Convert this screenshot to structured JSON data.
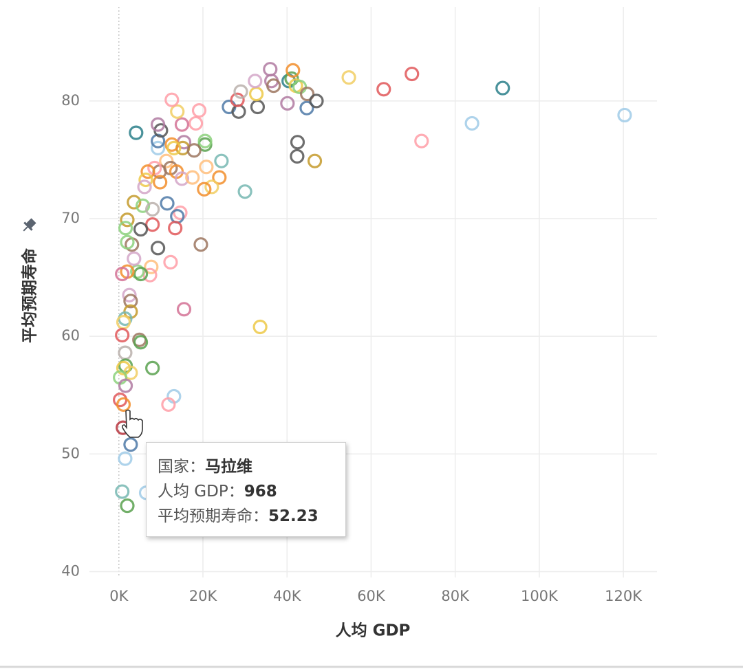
{
  "chart_data": {
    "type": "scatter",
    "x_label": "人均 GDP",
    "y_label": "平均预期寿命",
    "xlim": [
      -7000,
      128000
    ],
    "ylim": [
      39.5,
      88
    ],
    "xticks": [
      {
        "value": 0,
        "label": "0K"
      },
      {
        "value": 20000,
        "label": "20K"
      },
      {
        "value": 40000,
        "label": "40K"
      },
      {
        "value": 60000,
        "label": "60K"
      },
      {
        "value": 80000,
        "label": "80K"
      },
      {
        "value": 100000,
        "label": "100K"
      },
      {
        "value": 120000,
        "label": "120K"
      }
    ],
    "yticks": [
      40,
      50,
      60,
      70,
      80
    ],
    "grid": true,
    "x": [
      4100,
      26200,
      28500,
      28200,
      29000,
      33000,
      32700,
      32400,
      36000,
      36300,
      36800,
      40100,
      40400,
      41100,
      41400,
      42100,
      43000,
      44700,
      44800,
      47000,
      42500,
      42400,
      46600,
      54700,
      63000,
      69700,
      72000,
      84000,
      91300,
      120300,
      33600,
      30000,
      24400,
      23900,
      22100,
      20300,
      20800,
      20500,
      20500,
      19100,
      18300,
      15000,
      13900,
      12600,
      15500,
      15200,
      17900,
      12600,
      13100,
      11300,
      12300,
      13700,
      15000,
      17500,
      9300,
      9300,
      10000,
      9300,
      9700,
      8500,
      6900,
      6400,
      6100,
      9800,
      3600,
      5700,
      8000,
      11500,
      14600,
      13900,
      13400,
      8000,
      5200,
      2000,
      1600,
      3100,
      2000,
      19500,
      9300,
      12300,
      7700,
      7400,
      4400,
      5200,
      2000,
      800,
      3600,
      2500,
      2800,
      2800,
      1500,
      1100,
      800,
      4900,
      5200,
      15500,
      1500,
      1600,
      1100,
      2800,
      300,
      1600,
      8000,
      13100,
      11800,
      300,
      1100,
      968,
      2800,
      1500,
      800,
      2000,
      6500
    ],
    "y": [
      77.3,
      79.5,
      79.1,
      80.1,
      80.8,
      79.5,
      80.6,
      81.7,
      82.7,
      81.7,
      81.3,
      79.8,
      81.7,
      81.9,
      82.6,
      81.3,
      81.2,
      79.4,
      80.6,
      80.0,
      76.5,
      75.3,
      74.9,
      82.0,
      81.0,
      82.3,
      76.6,
      78.1,
      81.1,
      78.8,
      60.8,
      72.3,
      74.9,
      73.5,
      72.7,
      72.5,
      74.4,
      76.3,
      76.6,
      79.2,
      78.1,
      78.0,
      79.1,
      80.1,
      76.5,
      76.0,
      75.8,
      76.3,
      76.0,
      74.9,
      74.3,
      74.0,
      73.4,
      73.5,
      76.0,
      76.6,
      77.5,
      78.0,
      74.0,
      74.3,
      74.0,
      73.3,
      72.7,
      73.1,
      71.4,
      71.1,
      70.8,
      71.3,
      70.5,
      70.2,
      69.2,
      69.5,
      69.1,
      69.9,
      69.2,
      67.8,
      68.0,
      67.8,
      67.5,
      66.3,
      65.9,
      65.2,
      65.5,
      65.3,
      65.5,
      65.3,
      66.6,
      63.5,
      63.0,
      62.1,
      61.5,
      61.2,
      60.1,
      59.7,
      59.5,
      62.3,
      58.6,
      57.5,
      57.3,
      56.9,
      56.5,
      55.8,
      57.3,
      54.9,
      54.2,
      54.6,
      54.2,
      52.23,
      50.8,
      49.6,
      46.8,
      45.6,
      46.7
    ],
    "colors": [
      "#2a7f8a",
      "#4e79a7",
      "#555555",
      "#e15759",
      "#bab0ac",
      "#555555",
      "#edc948",
      "#d4a6c8",
      "#b07aa1",
      "#b07aa1",
      "#9c755f",
      "#b07aa1",
      "#2a7f8a",
      "#59a14f",
      "#f28e2b",
      "#edc948",
      "#8cd17d",
      "#4e79a7",
      "#9c755f",
      "#555555",
      "#555555",
      "#555555",
      "#c49a2a",
      "#f1ce63",
      "#e15759",
      "#e15759",
      "#ff9da7",
      "#a0cbe8",
      "#2a7f8a",
      "#a0cbe8",
      "#edc948",
      "#76b7b2",
      "#76b7b2",
      "#f28e2b",
      "#f1ce63",
      "#f28e2b",
      "#ffbe7d",
      "#59a14f",
      "#8cd17d",
      "#ff9da7",
      "#ff9da7",
      "#d37295",
      "#f1ce63",
      "#ff9da7",
      "#b07aa1",
      "#c49a2a",
      "#9c755f",
      "#f28e2b",
      "#edc948",
      "#ffbe7d",
      "#9c755f",
      "#f28e2b",
      "#d4a6c8",
      "#ffbe7d",
      "#a0cbe8",
      "#4e79a7",
      "#555555",
      "#b07aa1",
      "#9c755f",
      "#ff9da7",
      "#f28e2b",
      "#edc948",
      "#d4a6c8",
      "#f28e2b",
      "#c49a2a",
      "#8cd17d",
      "#bab0ac",
      "#4e79a7",
      "#ff9da7",
      "#4e79a7",
      "#e15759",
      "#e15759",
      "#555555",
      "#c49a2a",
      "#8cd17d",
      "#9c755f",
      "#8cd17d",
      "#9c755f",
      "#555555",
      "#ff9da7",
      "#ffbe7d",
      "#ff9da7",
      "#8cd17d",
      "#59a14f",
      "#f28e2b",
      "#d37295",
      "#d4a6c8",
      "#d4a6c8",
      "#9c755f",
      "#c49a2a",
      "#76b7b2",
      "#f1ce63",
      "#e15759",
      "#9c755f",
      "#59a14f",
      "#d37295",
      "#bab0ac",
      "#59a14f",
      "#edc948",
      "#f1ce63",
      "#8cd17d",
      "#b07aa1",
      "#59a14f",
      "#a0cbe8",
      "#ff9da7",
      "#e15759",
      "#f28e2b",
      "#b6323c",
      "#4e79a7",
      "#a0cbe8",
      "#76b7b2",
      "#59a14f",
      "#a0cbe8"
    ],
    "tooltip": [
      {
        "label": "国家：",
        "value": "马拉维"
      },
      {
        "label": "人均 GDP：",
        "value": 968
      },
      {
        "label": "平均预期寿命：",
        "value": 52.23
      }
    ]
  }
}
